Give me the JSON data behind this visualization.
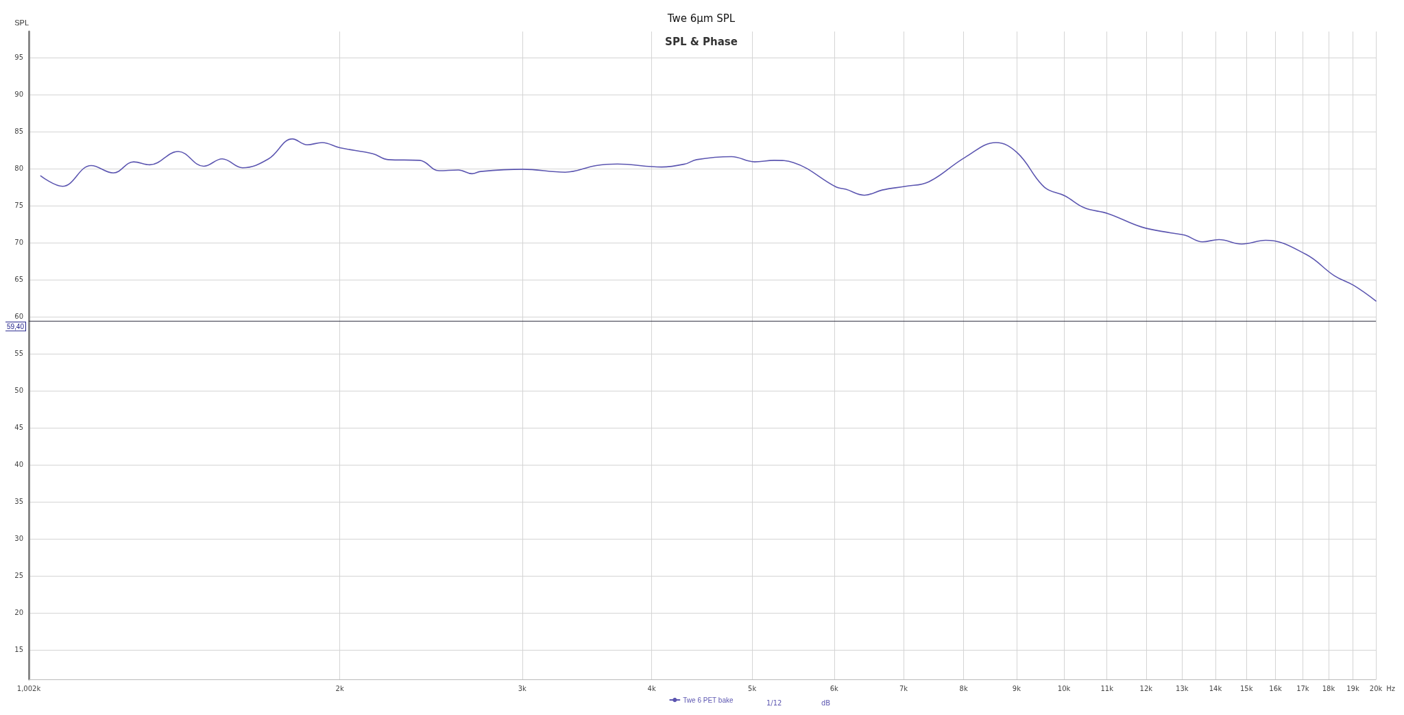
{
  "chart_data": {
    "type": "line",
    "title": "Twe 6µm SPL",
    "subtitle": "SPL & Phase",
    "ylabel": "SPL",
    "x": [
      1029,
      1080,
      1151,
      1209,
      1265,
      1311,
      1397,
      1478,
      1540,
      1611,
      1707,
      1800,
      1860,
      1923,
      2000,
      2152,
      2226,
      2388,
      2494,
      2603,
      2684,
      2735,
      3002,
      3300,
      3536,
      3707,
      4089,
      4306,
      4420,
      4776,
      5028,
      5252,
      5482,
      6026,
      6157,
      6417,
      6678,
      7033,
      7403,
      8025,
      8597,
      9017,
      9570,
      10020,
      10460,
      11030,
      11880,
      12680,
      13080,
      13600,
      14110,
      14840,
      15650,
      17120,
      18240,
      19040,
      20000
    ],
    "series": [
      {
        "name": "Twe 6 PET bake",
        "color": "#5b55b0",
        "values": [
          79.0,
          77.6,
          80.4,
          79.4,
          80.9,
          80.5,
          82.3,
          80.3,
          81.3,
          80.1,
          81.3,
          84.0,
          83.2,
          83.5,
          82.8,
          82.0,
          81.2,
          81.1,
          79.7,
          79.8,
          79.3,
          79.6,
          79.9,
          79.5,
          80.4,
          80.6,
          80.2,
          80.6,
          81.2,
          81.6,
          80.9,
          81.1,
          80.8,
          77.5,
          77.2,
          76.4,
          77.1,
          77.6,
          78.2,
          81.5,
          83.5,
          82.1,
          77.5,
          76.3,
          74.7,
          73.9,
          72.1,
          71.3,
          71.0,
          70.1,
          70.4,
          69.8,
          70.3,
          68.4,
          65.5,
          64.2,
          62.1
        ]
      }
    ],
    "log": "x",
    "xlim": [
      1002,
      20000
    ],
    "xticks": [
      {
        "value": 1002,
        "label": "1,002k"
      },
      {
        "value": 2000,
        "label": "2k"
      },
      {
        "value": 3000,
        "label": "3k"
      },
      {
        "value": 4000,
        "label": "4k"
      },
      {
        "value": 5000,
        "label": "5k"
      },
      {
        "value": 6000,
        "label": "6k"
      },
      {
        "value": 7000,
        "label": "7k"
      },
      {
        "value": 8000,
        "label": "8k"
      },
      {
        "value": 9000,
        "label": "9k"
      },
      {
        "value": 10000,
        "label": "10k"
      },
      {
        "value": 11000,
        "label": "11k"
      },
      {
        "value": 12000,
        "label": "12k"
      },
      {
        "value": 13000,
        "label": "13k"
      },
      {
        "value": 14000,
        "label": "14k"
      },
      {
        "value": 15000,
        "label": "15k"
      },
      {
        "value": 16000,
        "label": "16k"
      },
      {
        "value": 17000,
        "label": "17k"
      },
      {
        "value": 18000,
        "label": "18k"
      },
      {
        "value": 19000,
        "label": "19k"
      },
      {
        "value": 20000,
        "label": "20k"
      }
    ],
    "xlabel": "Hz",
    "ylim": [
      11,
      98.5
    ],
    "yticks": [
      15,
      20,
      25,
      30,
      35,
      40,
      45,
      50,
      55,
      60,
      65,
      70,
      75,
      80,
      85,
      90,
      95
    ],
    "ref_lines": [
      {
        "axis": "y",
        "value": 59.4,
        "label": "59,40",
        "color": "#333344"
      }
    ],
    "annotations": [
      "1/12",
      "dB"
    ],
    "grid": true,
    "legend": "bottom",
    "marker": "none",
    "line_style": "solid"
  }
}
